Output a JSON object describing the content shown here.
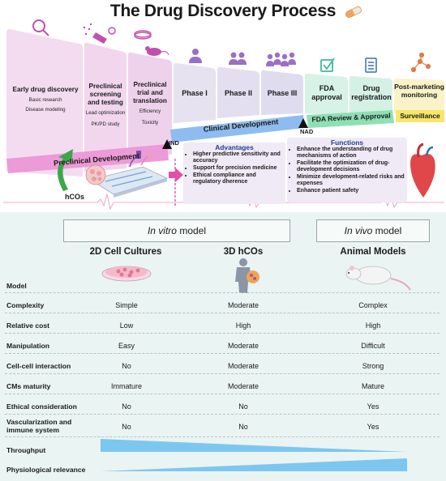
{
  "title": "The Drug Discovery Process",
  "stages": {
    "early": {
      "name": "Early drug discovery",
      "sub1": "Basic research",
      "sub2": "Disease modeling"
    },
    "screening": {
      "name": "Preclinical screening and testing",
      "sub1": "Lead optimization",
      "sub2": "PK/PD study"
    },
    "trial": {
      "name": "Preclinical trial and translation",
      "sub1": "Efficiency",
      "sub2": "Toxicity"
    },
    "phase1": "Phase I",
    "phase2": "Phase II",
    "phase3": "Phase III",
    "fda": "FDA approval",
    "registration": "Drug registration",
    "post": "Post-marketing monitoring"
  },
  "bars": {
    "preclinical": "Preclinical Development",
    "clinical": "Clinical Development",
    "review": "FDA Review & Approval",
    "surveillance": "Surveillance"
  },
  "markers": {
    "ind": "IND",
    "nad": "NAD"
  },
  "hcos_label": "hCOs",
  "advantages": {
    "title": "Advantages",
    "items": [
      "Higher predictive sensitivity and accuracy",
      "Support for precision medicine",
      "Ethical compliance and regulatory dherence"
    ]
  },
  "functions": {
    "title": "Functions",
    "items": [
      "Enhance the understanding of drug mechanisms of action",
      "Facilitate the optimization of drug-development decisions",
      "Minimize development-related risks and expenses",
      "Enhance patient safety"
    ]
  },
  "table": {
    "in_vitro_header": {
      "em": "In vitro",
      "rest": " model"
    },
    "in_vivo_header": {
      "em": "In vivo",
      "rest": " model"
    },
    "columns": [
      "2D Cell Cultures",
      "3D hCOs",
      "Animal Models"
    ],
    "model_label": "Model",
    "rows": [
      {
        "label": "Complexity",
        "values": [
          "Simple",
          "Moderate",
          "Complex"
        ]
      },
      {
        "label": "Relative cost",
        "values": [
          "Low",
          "High",
          "High"
        ]
      },
      {
        "label": "Manipulation",
        "values": [
          "Easy",
          "Moderate",
          "Difficult"
        ]
      },
      {
        "label": "Cell-cell interaction",
        "values": [
          "No",
          "Moderate",
          "Strong"
        ]
      },
      {
        "label": "CMs maturity",
        "values": [
          "Immature",
          "Moderate",
          "Mature"
        ]
      },
      {
        "label": "Ethical consideration",
        "values": [
          "No",
          "No",
          "Yes"
        ]
      },
      {
        "label": "Vascularization and immune system",
        "values": [
          "No",
          "No",
          "Yes"
        ]
      }
    ],
    "throughput_label": "Throughput",
    "relevance_label": "Physiological relevance"
  },
  "colors": {
    "preclinical_card": "#f3dcef",
    "preclinical_bar": "#ec9ad8",
    "clinical_card": "#e6e2f0",
    "clinical_bar": "#8fbcf0",
    "review_card": "#d7f2e6",
    "review_bar": "#8ee0b4",
    "surveillance_card": "#fbf3c8",
    "surveillance_bar": "#f7e66b",
    "icon_purple": "#9b6fc7",
    "wedge_blue": "#7cc7f0"
  }
}
